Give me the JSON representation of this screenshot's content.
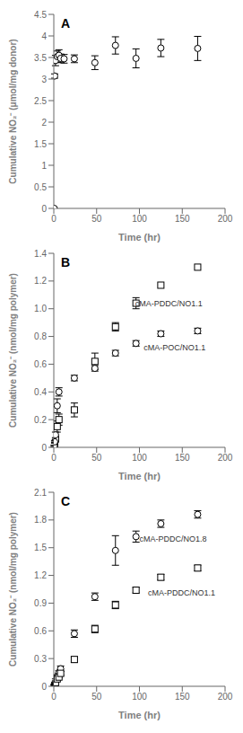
{
  "chart_data": [
    {
      "type": "scatter",
      "title": "A",
      "x_label": "Time (hr)",
      "y_label": "Cumulative NO₂⁻ (μmol/mg donor)",
      "xlim": [
        0,
        200
      ],
      "ylim": [
        0,
        4.5
      ],
      "xticks": [
        0,
        50,
        100,
        150,
        200
      ],
      "yticks": [
        0,
        0.5,
        1,
        1.5,
        2,
        2.5,
        3,
        3.5,
        4,
        4.5
      ],
      "grid": false,
      "series": [
        {
          "marker": "circle",
          "color": "black",
          "x": [
            0.5,
            1,
            2,
            4,
            6,
            8,
            12,
            24,
            48,
            72,
            96,
            125,
            168
          ],
          "values": [
            0.0,
            3.07,
            3.43,
            3.52,
            3.55,
            3.48,
            3.47,
            3.47,
            3.38,
            3.78,
            3.48,
            3.72,
            3.71
          ],
          "error": [
            0.0,
            0.05,
            0.12,
            0.13,
            0.13,
            0.1,
            0.1,
            0.09,
            0.16,
            0.2,
            0.22,
            0.2,
            0.28
          ]
        }
      ]
    },
    {
      "type": "scatter",
      "title": "B",
      "x_label": "Time (hr)",
      "y_label": "Cumulative NO₂⁻ (nmol/mg polymer)",
      "xlim": [
        0,
        200
      ],
      "ylim": [
        0,
        1.4
      ],
      "xticks": [
        0,
        50,
        100,
        150,
        200
      ],
      "yticks": [
        0,
        0.2,
        0.4,
        0.6,
        0.8,
        {
          "value": 1.0,
          "label": "1.0"
        },
        1.2,
        1.4
      ],
      "grid": false,
      "series": [
        {
          "marker": "square",
          "color": "black",
          "x": [
            0.5,
            1,
            2,
            4,
            6,
            24,
            48,
            72,
            96,
            125,
            168
          ],
          "values": [
            0.01,
            0.04,
            0.06,
            0.15,
            0.2,
            0.27,
            0.62,
            0.87,
            1.04,
            1.17,
            1.3
          ],
          "error": [
            0.005,
            0.005,
            0.005,
            0.04,
            0.04,
            0.05,
            0.06,
            0.03,
            0.04,
            0.0,
            0.0
          ]
        },
        {
          "marker": "circle",
          "color": "black",
          "x": [
            0.5,
            1,
            2,
            4,
            6,
            24,
            48,
            72,
            96,
            125,
            168
          ],
          "values": [
            0.01,
            0.04,
            0.09,
            0.3,
            0.4,
            0.5,
            0.57,
            0.68,
            0.75,
            0.82,
            0.84
          ],
          "error": [
            0.005,
            0.01,
            0.02,
            0.05,
            0.03,
            0.02,
            0.02,
            0.02,
            0.02,
            0.02,
            0.02
          ]
        }
      ],
      "annotations": [
        {
          "text": "cMA-PDDC/NO1.1",
          "x": 95,
          "y": 1.04
        },
        {
          "text": "cMA-POC/NO1.1",
          "x": 105,
          "y": 0.72
        }
      ]
    },
    {
      "type": "scatter",
      "title": "C",
      "x_label": "Time (hr)",
      "y_label": "Cumulative NO₂⁻ (nmol/mg polymer)",
      "xlim": [
        0,
        200
      ],
      "ylim": [
        0,
        2.1
      ],
      "xticks": [
        0,
        50,
        100,
        150,
        200
      ],
      "yticks": [
        0,
        0.3,
        0.6,
        0.9,
        1.2,
        1.5,
        1.8,
        2.1
      ],
      "grid": false,
      "series": [
        {
          "marker": "circle",
          "color": "black",
          "x": [
            0.5,
            1,
            2,
            4,
            6,
            8,
            24,
            48,
            72,
            96,
            125,
            168
          ],
          "values": [
            0.02,
            0.04,
            0.07,
            0.11,
            0.15,
            0.19,
            0.57,
            0.97,
            1.47,
            1.62,
            1.76,
            1.86
          ],
          "error": [
            0.005,
            0.005,
            0.01,
            0.01,
            0.02,
            0.03,
            0.04,
            0.04,
            0.16,
            0.06,
            0.04,
            0.04
          ]
        },
        {
          "marker": "square",
          "color": "black",
          "x": [
            0.5,
            1,
            2,
            4,
            6,
            8,
            24,
            48,
            72,
            96,
            125,
            168
          ],
          "values": [
            0.01,
            0.02,
            0.04,
            0.08,
            0.1,
            0.14,
            0.29,
            0.62,
            0.88,
            1.04,
            1.18,
            1.28
          ],
          "error": [
            0.005,
            0.005,
            0.01,
            0.01,
            0.01,
            0.02,
            0.03,
            0.04,
            0.04,
            0.03,
            0.03,
            0.03
          ]
        }
      ],
      "annotations": [
        {
          "text": "cMA-PDDC/NO1.8",
          "x": 100,
          "y": 1.59
        },
        {
          "text": "cMA-PDDC/NO1.1",
          "x": 110,
          "y": 1.01
        }
      ]
    }
  ]
}
